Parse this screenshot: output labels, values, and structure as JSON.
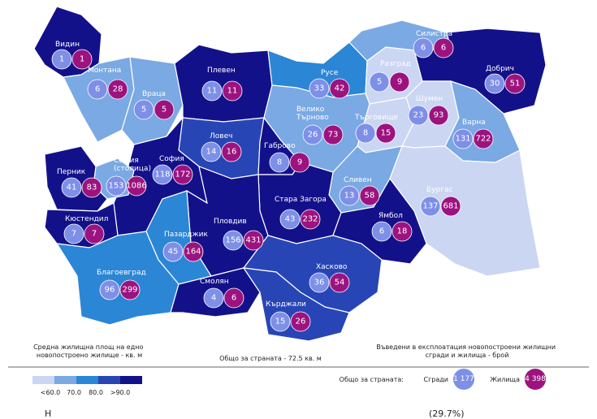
{
  "colors": {
    "lt60": "#cbd6f3",
    "c70": "#7aa9e3",
    "c80": "#2b86d6",
    "c90": "#2845b6",
    "gt90": "#13118a",
    "buildings": "#7e8fe8",
    "dwellings": "#9c137f"
  },
  "regions": [
    {
      "name": "Видин",
      "buildings": "1",
      "dwellings": "1"
    },
    {
      "name": "Монтана",
      "buildings": "6",
      "dwellings": "28"
    },
    {
      "name": "Враца",
      "buildings": "5",
      "dwellings": "5"
    },
    {
      "name": "Плевен",
      "buildings": "11",
      "dwellings": "11"
    },
    {
      "name": "Русе",
      "buildings": "33",
      "dwellings": "42"
    },
    {
      "name": "Силистра",
      "buildings": "6",
      "dwellings": "6"
    },
    {
      "name": "Разград",
      "buildings": "5",
      "dwellings": "9"
    },
    {
      "name": "Добрич",
      "buildings": "30",
      "dwellings": "51"
    },
    {
      "name": "Велико Търново",
      "buildings": "26",
      "dwellings": "73"
    },
    {
      "name": "Търговище",
      "buildings": "8",
      "dwellings": "15"
    },
    {
      "name": "Шумен",
      "buildings": "23",
      "dwellings": "93"
    },
    {
      "name": "Варна",
      "buildings": "131",
      "dwellings": "722"
    },
    {
      "name": "Ловеч",
      "buildings": "14",
      "dwellings": "16"
    },
    {
      "name": "Габрово",
      "buildings": "8",
      "dwellings": "9"
    },
    {
      "name": "София",
      "buildings": "118",
      "dwellings": "172"
    },
    {
      "name": "София (столица)",
      "buildings": "153",
      "dwellings": "1086"
    },
    {
      "name": "Перник",
      "buildings": "41",
      "dwellings": "83"
    },
    {
      "name": "Кюстендил",
      "buildings": "7",
      "dwellings": "7"
    },
    {
      "name": "Сливен",
      "buildings": "13",
      "dwellings": "58"
    },
    {
      "name": "Бургас",
      "buildings": "137",
      "dwellings": "681"
    },
    {
      "name": "Стара Загора",
      "buildings": "43",
      "dwellings": "232"
    },
    {
      "name": "Ямбол",
      "buildings": "6",
      "dwellings": "18"
    },
    {
      "name": "Пловдив",
      "buildings": "156",
      "dwellings": "431"
    },
    {
      "name": "Пазарджик",
      "buildings": "45",
      "dwellings": "164"
    },
    {
      "name": "Благоевград",
      "buildings": "96",
      "dwellings": "299"
    },
    {
      "name": "Смолян",
      "buildings": "4",
      "dwellings": "6"
    },
    {
      "name": "Хасково",
      "buildings": "36",
      "dwellings": "54"
    },
    {
      "name": "Кърджали",
      "buildings": "15",
      "dwellings": "26"
    }
  ],
  "legend": {
    "left_title": "Средна жилищна площ на едно новопостроено жилище - кв. м",
    "center_text": "Общо за страната - 72.5 кв. м",
    "right_title": "Въведени в експлоатация новопостроени жилищни сгради и жилища - брой",
    "scale_labels": [
      "<60.0",
      "70.0",
      "80.0",
      ">90.0"
    ],
    "total_label": "Общо за страната:",
    "buildings_label": "Сгради",
    "buildings_total": "1 177",
    "dwellings_label": "Жилища",
    "dwellings_total": "4 398"
  },
  "cut_text": {
    "left": "Н",
    "right": "(29.7%)"
  }
}
